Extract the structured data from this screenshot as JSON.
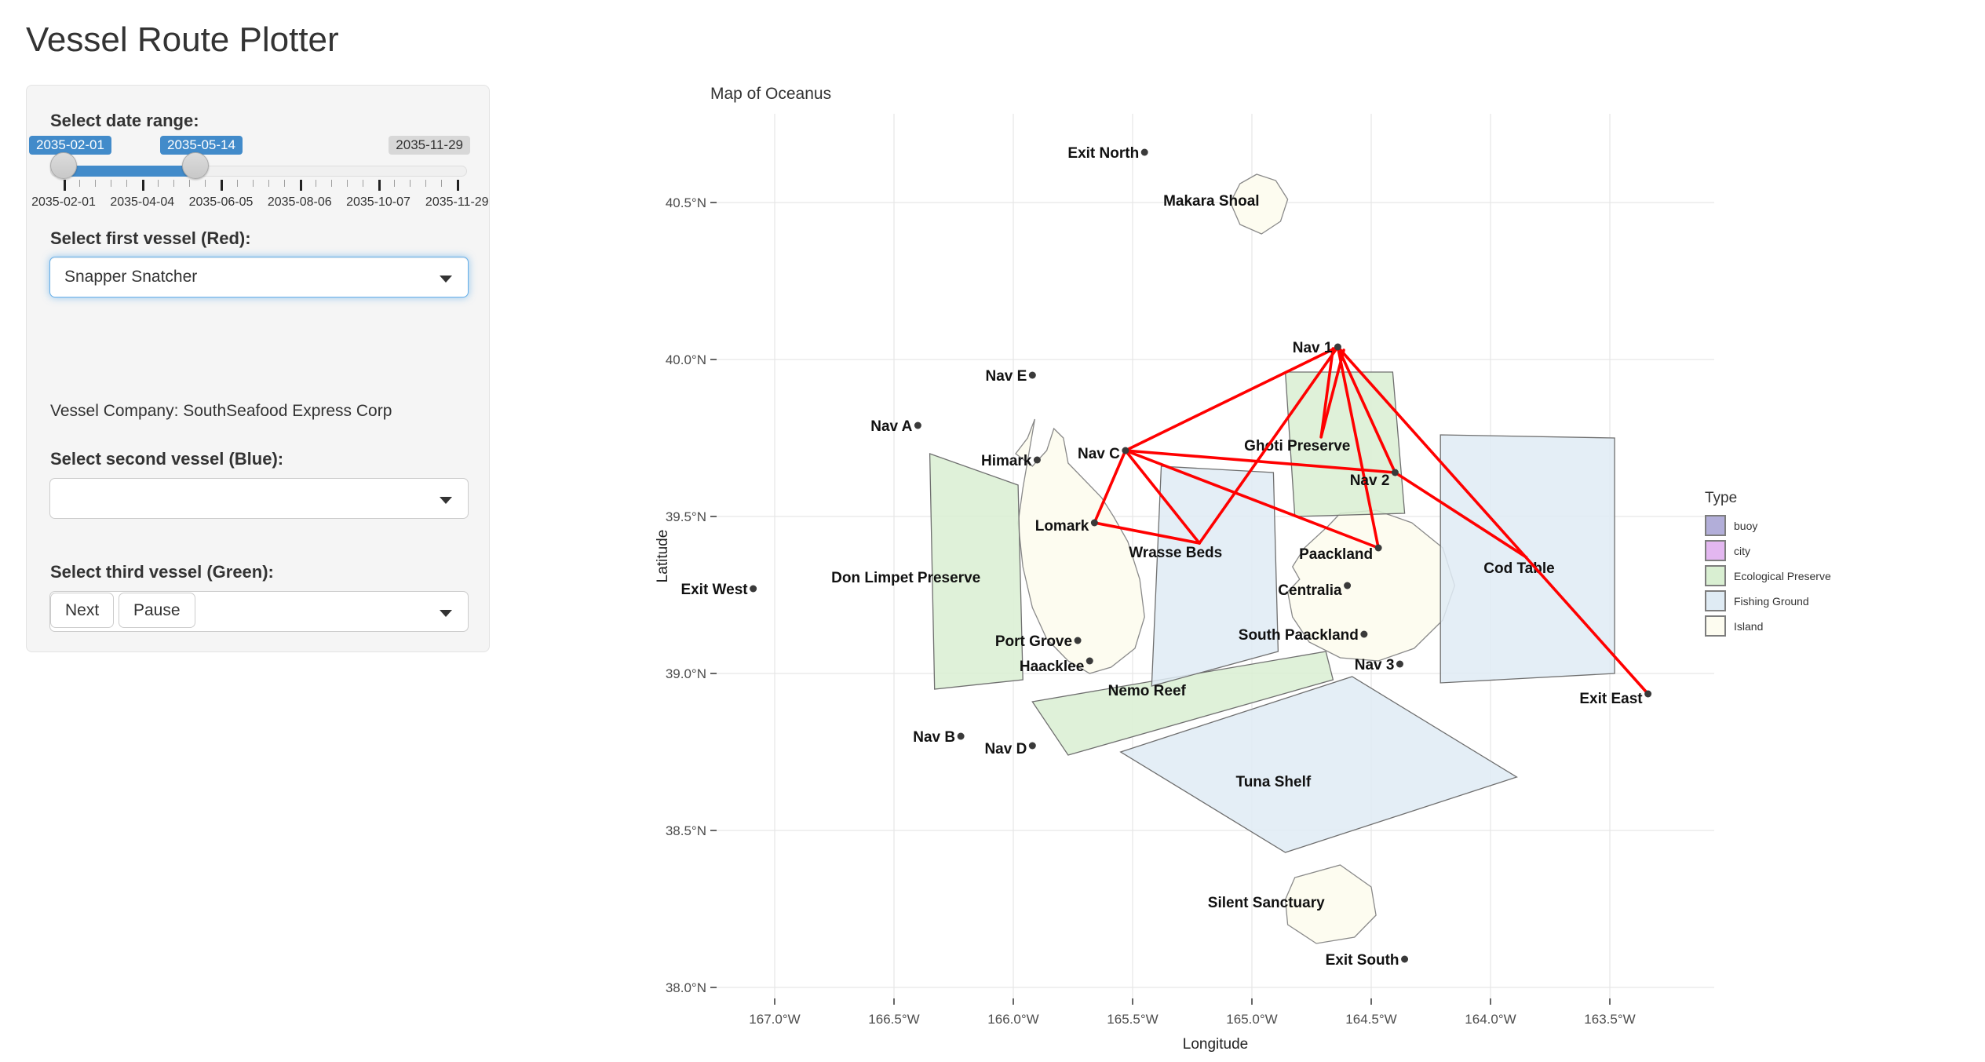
{
  "app": {
    "title": "Vessel Route Plotter"
  },
  "sidebar": {
    "date_range": {
      "label": "Select date range:",
      "from": "2035-02-01",
      "to": "2035-05-14",
      "max": "2035-11-29",
      "ticks": [
        "2035-02-01",
        "2035-04-04",
        "2035-06-05",
        "2035-08-06",
        "2035-10-07",
        "2035-11-29"
      ]
    },
    "vessel1": {
      "label": "Select first vessel (Red):",
      "value": "Snapper Snatcher"
    },
    "company_line": "Vessel Company: SouthSeafood Express Corp",
    "vessel2": {
      "label": "Select second vessel (Blue):",
      "value": ""
    },
    "vessel3": {
      "label": "Select third vessel (Green):",
      "value": ""
    },
    "buttons": {
      "next": "Next",
      "pause": "Pause"
    }
  },
  "legend": {
    "title": "Type",
    "items": [
      {
        "label": "buoy",
        "color": "#b2aed9"
      },
      {
        "label": "city",
        "color": "#e3b7f0"
      },
      {
        "label": "Ecological Preserve",
        "color": "#d9efd2"
      },
      {
        "label": "Fishing Ground",
        "color": "#dfebf4"
      },
      {
        "label": "Island",
        "color": "#fdfcf0"
      }
    ]
  },
  "colors": {
    "route_red": "#ff0000",
    "accent_blue": "#428bca",
    "point": "#3a3a3a",
    "region_fill": {
      "Ecological Preserve": "#d9efd2",
      "Fishing Ground": "#dfebf4",
      "Island": "#fdfcf0"
    }
  },
  "chart_data": {
    "type": "map",
    "title": "Map of Oceanus",
    "xlabel": "Longitude",
    "ylabel": "Latitude",
    "xlim": [
      -167.24,
      -163.06
    ],
    "ylim": [
      37.97,
      40.78
    ],
    "x_ticks": [
      {
        "value": -167.0,
        "label": "167.0°W"
      },
      {
        "value": -166.5,
        "label": "166.5°W"
      },
      {
        "value": -166.0,
        "label": "166.0°W"
      },
      {
        "value": -165.5,
        "label": "165.5°W"
      },
      {
        "value": -165.0,
        "label": "165.0°W"
      },
      {
        "value": -164.5,
        "label": "164.5°W"
      },
      {
        "value": -164.0,
        "label": "164.0°W"
      },
      {
        "value": -163.5,
        "label": "163.5°W"
      }
    ],
    "y_ticks": [
      {
        "value": 40.5,
        "label": "40.5°N"
      },
      {
        "value": 40.0,
        "label": "40.0°N"
      },
      {
        "value": 39.5,
        "label": "39.5°N"
      },
      {
        "value": 39.0,
        "label": "39.0°N"
      },
      {
        "value": 38.5,
        "label": "38.5°N"
      },
      {
        "value": 38.0,
        "label": "38.0°N"
      }
    ],
    "islands": [
      {
        "name": "Makara Shoal",
        "label": "Makara Shoal",
        "label_at": [
          -165.17,
          40.49
        ],
        "polygon": [
          [
            -164.98,
            40.59
          ],
          [
            -164.9,
            40.57
          ],
          [
            -164.85,
            40.51
          ],
          [
            -164.88,
            40.44
          ],
          [
            -164.96,
            40.4
          ],
          [
            -165.05,
            40.43
          ],
          [
            -165.09,
            40.5
          ],
          [
            -165.05,
            40.56
          ]
        ]
      },
      {
        "name": "Lomark Island",
        "label": null,
        "label_at": null,
        "polygon": [
          [
            -165.91,
            39.81
          ],
          [
            -165.94,
            39.75
          ],
          [
            -165.99,
            39.7
          ],
          [
            -165.92,
            39.66
          ],
          [
            -165.86,
            39.71
          ],
          [
            -165.83,
            39.78
          ],
          [
            -165.79,
            39.75
          ],
          [
            -165.77,
            39.67
          ],
          [
            -165.63,
            39.56
          ],
          [
            -165.58,
            39.5
          ],
          [
            -165.52,
            39.42
          ],
          [
            -165.47,
            39.3
          ],
          [
            -165.45,
            39.18
          ],
          [
            -165.49,
            39.08
          ],
          [
            -165.59,
            39.02
          ],
          [
            -165.68,
            39.0
          ],
          [
            -165.77,
            39.04
          ],
          [
            -165.86,
            39.11
          ],
          [
            -165.92,
            39.21
          ],
          [
            -165.96,
            39.34
          ],
          [
            -165.98,
            39.48
          ],
          [
            -165.96,
            39.59
          ]
        ]
      },
      {
        "name": "Paackland Island",
        "label": null,
        "label_at": null,
        "polygon": [
          [
            -164.63,
            39.51
          ],
          [
            -164.48,
            39.52
          ],
          [
            -164.33,
            39.48
          ],
          [
            -164.2,
            39.4
          ],
          [
            -164.15,
            39.28
          ],
          [
            -164.2,
            39.17
          ],
          [
            -164.32,
            39.08
          ],
          [
            -164.47,
            39.04
          ],
          [
            -164.63,
            39.05
          ],
          [
            -164.76,
            39.1
          ],
          [
            -164.83,
            39.18
          ],
          [
            -164.85,
            39.26
          ],
          [
            -164.8,
            39.3
          ],
          [
            -164.83,
            39.34
          ],
          [
            -164.78,
            39.4
          ],
          [
            -164.68,
            39.47
          ]
        ]
      },
      {
        "name": "Silent Sanctuary",
        "label": "Silent Sanctuary",
        "label_at": [
          -164.94,
          38.255
        ],
        "polygon": [
          [
            -164.82,
            38.35
          ],
          [
            -164.63,
            38.39
          ],
          [
            -164.5,
            38.32
          ],
          [
            -164.48,
            38.23
          ],
          [
            -164.57,
            38.16
          ],
          [
            -164.73,
            38.14
          ],
          [
            -164.85,
            38.2
          ],
          [
            -164.86,
            38.28
          ]
        ]
      }
    ],
    "regions": [
      {
        "name": "Don Limpet Preserve",
        "type": "Ecological Preserve",
        "label_at": [
          -166.45,
          39.29
        ],
        "polygon": [
          [
            -166.35,
            39.7
          ],
          [
            -165.98,
            39.6
          ],
          [
            -165.96,
            38.98
          ],
          [
            -166.33,
            38.95
          ]
        ]
      },
      {
        "name": "Ghoti Preserve",
        "type": "Ecological Preserve",
        "label_at": [
          -164.81,
          39.71
        ],
        "polygon": [
          [
            -164.86,
            39.96
          ],
          [
            -164.41,
            39.96
          ],
          [
            -164.36,
            39.51
          ],
          [
            -164.82,
            39.5
          ]
        ]
      },
      {
        "name": "Nemo Reef",
        "type": "Ecological Preserve",
        "label_at": [
          -165.44,
          38.93
        ],
        "polygon": [
          [
            -165.92,
            38.91
          ],
          [
            -164.69,
            39.07
          ],
          [
            -164.66,
            38.98
          ],
          [
            -165.77,
            38.74
          ]
        ]
      },
      {
        "name": "Wrasse Beds",
        "type": "Fishing Ground",
        "label_at": [
          -165.32,
          39.37
        ],
        "polygon": [
          [
            -165.38,
            39.66
          ],
          [
            -164.91,
            39.64
          ],
          [
            -164.89,
            39.07
          ],
          [
            -165.42,
            38.96
          ]
        ]
      },
      {
        "name": "Cod Table",
        "type": "Fishing Ground",
        "label_at": [
          -163.88,
          39.32
        ],
        "polygon": [
          [
            -164.21,
            39.76
          ],
          [
            -163.48,
            39.75
          ],
          [
            -163.48,
            39.0
          ],
          [
            -164.21,
            38.97
          ]
        ]
      },
      {
        "name": "Tuna Shelf",
        "type": "Fishing Ground",
        "label_at": [
          -164.91,
          38.64
        ],
        "polygon": [
          [
            -165.55,
            38.75
          ],
          [
            -164.58,
            38.99
          ],
          [
            -163.89,
            38.67
          ],
          [
            -164.86,
            38.43
          ]
        ]
      }
    ],
    "points": [
      {
        "name": "Exit North",
        "type": "exit",
        "lon": -165.45,
        "lat": 40.66
      },
      {
        "name": "Exit West",
        "type": "exit",
        "lon": -167.09,
        "lat": 39.27
      },
      {
        "name": "Exit South",
        "type": "exit",
        "lon": -164.36,
        "lat": 38.09
      },
      {
        "name": "Exit East",
        "type": "exit",
        "lon": -163.34,
        "lat": 38.935,
        "dy": 12
      },
      {
        "name": "Nav A",
        "type": "buoy",
        "lon": -166.4,
        "lat": 39.79
      },
      {
        "name": "Nav B",
        "type": "buoy",
        "lon": -166.22,
        "lat": 38.8
      },
      {
        "name": "Nav C",
        "type": "buoy",
        "lon": -165.53,
        "lat": 39.71,
        "dy": 10
      },
      {
        "name": "Nav D",
        "type": "buoy",
        "lon": -165.92,
        "lat": 38.77,
        "dy": 10
      },
      {
        "name": "Nav E",
        "type": "buoy",
        "lon": -165.92,
        "lat": 39.95
      },
      {
        "name": "Nav 1",
        "type": "buoy",
        "lon": -164.64,
        "lat": 40.04
      },
      {
        "name": "Nav 2",
        "type": "buoy",
        "lon": -164.4,
        "lat": 39.64,
        "dy": 16
      },
      {
        "name": "Nav 3",
        "type": "buoy",
        "lon": -164.38,
        "lat": 39.03
      },
      {
        "name": "Himark",
        "type": "city",
        "lon": -165.9,
        "lat": 39.68
      },
      {
        "name": "Lomark",
        "type": "city",
        "lon": -165.66,
        "lat": 39.48,
        "dy": 10
      },
      {
        "name": "Port Grove",
        "type": "city",
        "lon": -165.73,
        "lat": 39.105
      },
      {
        "name": "Haacklee",
        "type": "city",
        "lon": -165.68,
        "lat": 39.04,
        "dy": 13
      },
      {
        "name": "Paackland",
        "type": "city",
        "lon": -164.47,
        "lat": 39.4,
        "dy": 14
      },
      {
        "name": "Centralia",
        "type": "city",
        "lon": -164.6,
        "lat": 39.28,
        "dy": 12
      },
      {
        "name": "South Paackland",
        "type": "city",
        "lon": -164.53,
        "lat": 39.125
      }
    ],
    "routes": {
      "vessel": "Snapper Snatcher",
      "color": "#ff0000",
      "segments": [
        [
          [
            -165.53,
            39.71
          ],
          [
            -164.64,
            40.04
          ]
        ],
        [
          [
            -164.66,
            40.035
          ],
          [
            -164.71,
            39.753
          ]
        ],
        [
          [
            -164.71,
            39.753
          ],
          [
            -164.615,
            40.03
          ]
        ],
        [
          [
            -164.64,
            40.04
          ],
          [
            -164.4,
            39.64
          ]
        ],
        [
          [
            -164.64,
            40.04
          ],
          [
            -164.47,
            39.4
          ]
        ],
        [
          [
            -164.64,
            40.04
          ],
          [
            -165.22,
            39.415
          ]
        ],
        [
          [
            -164.64,
            40.04
          ],
          [
            -163.34,
            38.935
          ]
        ],
        [
          [
            -164.4,
            39.64
          ],
          [
            -163.85,
            39.37
          ]
        ],
        [
          [
            -165.53,
            39.71
          ],
          [
            -164.4,
            39.64
          ]
        ],
        [
          [
            -165.53,
            39.71
          ],
          [
            -164.47,
            39.4
          ]
        ],
        [
          [
            -165.53,
            39.71
          ],
          [
            -165.22,
            39.415
          ]
        ],
        [
          [
            -165.53,
            39.71
          ],
          [
            -165.66,
            39.48
          ]
        ],
        [
          [
            -165.66,
            39.48
          ],
          [
            -165.22,
            39.415
          ]
        ]
      ]
    }
  }
}
